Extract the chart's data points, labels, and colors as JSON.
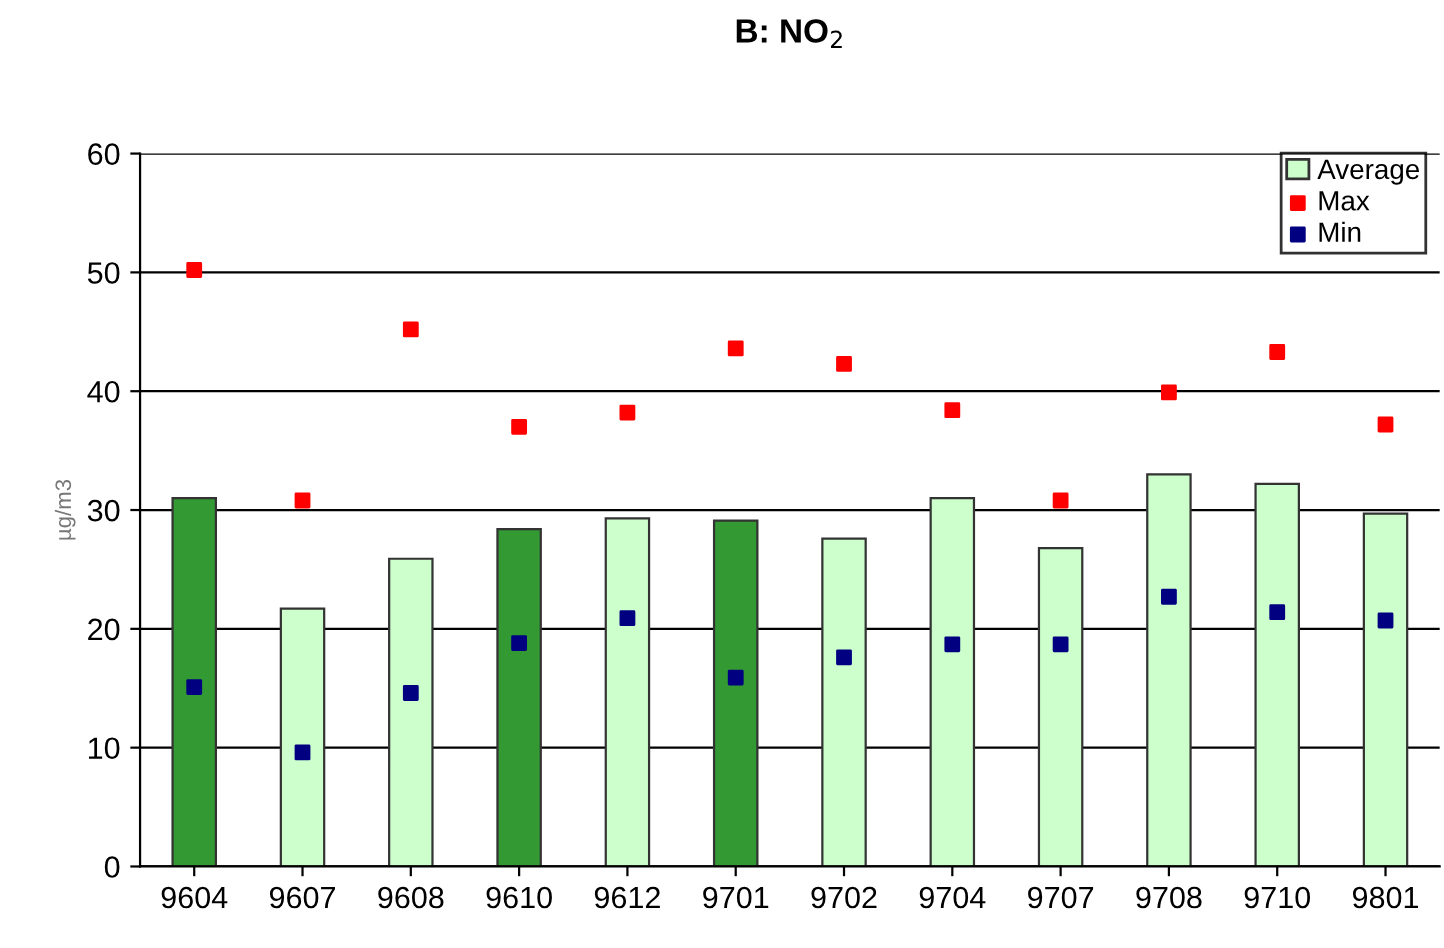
{
  "chart_data": {
    "type": "bar",
    "title": "B: NO$_{2}$",
    "ylabel": "µg/m3",
    "categories": [
      "9604",
      "9607",
      "9608",
      "9610",
      "9612",
      "9701",
      "9702",
      "9704",
      "9707",
      "9708",
      "9710",
      "9801"
    ],
    "series": [
      {
        "name": "Average",
        "color": "#ccffcc",
        "colors": [
          "#339933",
          "#ccffcc",
          "#ccffcc",
          "#339933",
          "#ccffcc",
          "#339933",
          "#ccffcc",
          "#ccffcc",
          "#ccffcc",
          "#ccffcc",
          "#ccffcc",
          "#ccffcc"
        ],
        "values": [
          31.0,
          21.7,
          25.9,
          28.4,
          29.3,
          29.1,
          27.6,
          31.0,
          26.8,
          33.0,
          32.2,
          29.7
        ]
      },
      {
        "name": "Max",
        "type": "scatter",
        "color": "#ff0000",
        "marker": "square",
        "values": [
          50.2,
          30.8,
          45.2,
          37.0,
          38.2,
          43.6,
          42.3,
          38.4,
          30.8,
          39.9,
          43.3,
          37.2
        ]
      },
      {
        "name": "Min",
        "type": "scatter",
        "color": "#000080",
        "marker": "square",
        "values": [
          15.1,
          9.6,
          14.6,
          18.8,
          20.9,
          15.9,
          17.6,
          18.7,
          18.7,
          22.7,
          21.4,
          20.7
        ]
      }
    ],
    "ylim": [
      0,
      60
    ],
    "yticks": [
      0,
      10,
      20,
      30,
      40,
      50,
      60
    ],
    "grid": "y",
    "legend": "top right"
  }
}
